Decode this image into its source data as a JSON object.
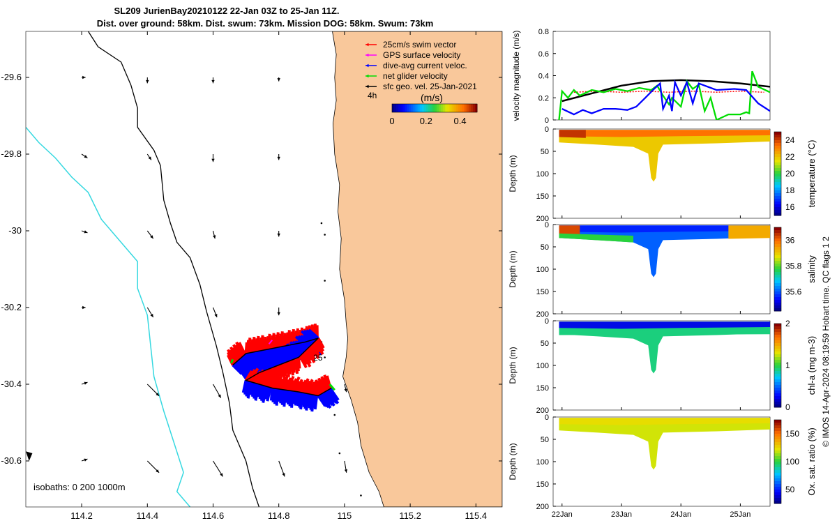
{
  "header": {
    "title_line1": "SL209 JurienBay20210122 22-Jan 03Z to 25-Jan 11Z.",
    "title_line2": "Dist. over ground: 58km. Dist. swum: 73km. Mission DOG: 58km. Swum: 73km"
  },
  "footer": {
    "credit": "© IMOS 14-Apr-2024 08:19:59 Hobart time. QC flags 1  2"
  },
  "colors": {
    "land": "#f9c89b",
    "isobath_0": "#000000",
    "isobath_1000": "#35d8e0",
    "swim": "#ff0000",
    "gps": "#ff00ff",
    "dive_avg": "#0000ff",
    "net": "#00dd00",
    "geo": "#000000"
  },
  "chart_data": [
    {
      "type": "map",
      "name": "glider-track-map",
      "xlim": [
        114.03,
        115.48
      ],
      "ylim": [
        -30.72,
        -29.48
      ],
      "xticks": [
        114.2,
        114.4,
        114.6,
        114.8,
        115,
        115.2,
        115.4
      ],
      "yticks": [
        -29.6,
        -29.8,
        -30,
        -30.2,
        -30.4,
        -30.6
      ],
      "xtick_labels": [
        "114.2",
        "114.4",
        "114.6",
        "114.8",
        "115",
        "115.2",
        "115.4"
      ],
      "ytick_labels": [
        "-29.6",
        "-29.8",
        "-30",
        "-30.2",
        "-30.4",
        "-30.6"
      ],
      "legend": [
        {
          "label": "25cm/s swim vector",
          "color": "#ff0000"
        },
        {
          "label": "GPS surface velocity",
          "color": "#ff00ff"
        },
        {
          "label": "dive-avg current veloc.",
          "color": "#0000ff"
        },
        {
          "label": "net glider velocity",
          "color": "#00dd00"
        },
        {
          "label": "sfc geo. vel. 25-Jan-2021",
          "color": "#000000"
        }
      ],
      "scale_label": "4h",
      "colorbar": {
        "title": "(m/s)",
        "ticks": [
          0,
          0.2,
          0.4
        ],
        "tick_labels": [
          "0",
          "0.2",
          "0.4"
        ],
        "range": [
          0,
          0.5
        ]
      },
      "isobath_label": "isobaths: 0   200  1000m",
      "annotations": [
        "25"
      ],
      "coastline": [
        [
          114.963,
          -29.48
        ],
        [
          114.975,
          -29.54
        ],
        [
          114.97,
          -29.6
        ],
        [
          114.975,
          -29.66
        ],
        [
          114.965,
          -29.72
        ],
        [
          114.97,
          -29.8
        ],
        [
          114.985,
          -29.88
        ],
        [
          114.98,
          -29.95
        ],
        [
          114.99,
          -30.02
        ],
        [
          114.985,
          -30.1
        ],
        [
          115.0,
          -30.18
        ],
        [
          115.005,
          -30.24
        ],
        [
          115.01,
          -30.28
        ],
        [
          115.005,
          -30.33
        ],
        [
          114.995,
          -30.38
        ],
        [
          115.02,
          -30.44
        ],
        [
          115.04,
          -30.5
        ],
        [
          115.05,
          -30.56
        ],
        [
          115.075,
          -30.63
        ],
        [
          115.105,
          -30.68
        ],
        [
          115.12,
          -30.72
        ]
      ],
      "isobath_200": [
        [
          114.22,
          -29.48
        ],
        [
          114.25,
          -29.52
        ],
        [
          114.32,
          -29.56
        ],
        [
          114.35,
          -29.62
        ],
        [
          114.37,
          -29.68
        ],
        [
          114.37,
          -29.73
        ],
        [
          114.42,
          -29.79
        ],
        [
          114.44,
          -29.83
        ],
        [
          114.45,
          -29.92
        ],
        [
          114.47,
          -29.98
        ],
        [
          114.49,
          -30.03
        ],
        [
          114.53,
          -30.07
        ],
        [
          114.56,
          -30.14
        ],
        [
          114.58,
          -30.21
        ],
        [
          114.61,
          -30.3
        ],
        [
          114.63,
          -30.37
        ],
        [
          114.65,
          -30.45
        ],
        [
          114.66,
          -30.52
        ],
        [
          114.7,
          -30.6
        ],
        [
          114.72,
          -30.67
        ],
        [
          114.74,
          -30.72
        ]
      ],
      "isobath_1000": [
        [
          114.03,
          -29.73
        ],
        [
          114.07,
          -29.77
        ],
        [
          114.12,
          -29.81
        ],
        [
          114.17,
          -29.86
        ],
        [
          114.22,
          -29.9
        ],
        [
          114.26,
          -29.97
        ],
        [
          114.32,
          -30.03
        ],
        [
          114.37,
          -30.08
        ],
        [
          114.37,
          -30.15
        ],
        [
          114.4,
          -30.22
        ],
        [
          114.41,
          -30.3
        ],
        [
          114.42,
          -30.38
        ],
        [
          114.45,
          -30.47
        ],
        [
          114.48,
          -30.55
        ],
        [
          114.51,
          -30.63
        ],
        [
          114.49,
          -30.68
        ],
        [
          114.53,
          -30.72
        ]
      ],
      "track": [
        [
          114.66,
          -30.35
        ],
        [
          114.7,
          -30.32
        ],
        [
          114.76,
          -30.31
        ],
        [
          114.82,
          -30.3
        ],
        [
          114.88,
          -30.29
        ],
        [
          114.92,
          -30.28
        ],
        [
          114.86,
          -30.33
        ],
        [
          114.8,
          -30.35
        ],
        [
          114.74,
          -30.37
        ],
        [
          114.7,
          -30.39
        ],
        [
          114.78,
          -30.41
        ],
        [
          114.86,
          -30.42
        ],
        [
          114.92,
          -30.43
        ],
        [
          114.96,
          -30.41
        ]
      ],
      "geo_vectors": {
        "lons": [
          114.2,
          114.4,
          114.6,
          114.8,
          115.0
        ],
        "lats": [
          -29.6,
          -29.8,
          -30.0,
          -30.2,
          -30.4,
          -30.6
        ],
        "u": [
          [
            0.02,
            0.0,
            0.0,
            0.0,
            null
          ],
          [
            0.03,
            0.02,
            0.0,
            0.0,
            null
          ],
          [
            0.03,
            0.03,
            0.01,
            0.0,
            null
          ],
          [
            0.02,
            0.03,
            0.02,
            0.0,
            null
          ],
          [
            0.03,
            0.06,
            0.04,
            0.0,
            0.01
          ],
          [
            0.03,
            0.06,
            0.05,
            0.03,
            0.01
          ]
        ],
        "v": [
          [
            0.0,
            -0.03,
            -0.03,
            -0.02,
            null
          ],
          [
            -0.02,
            -0.03,
            -0.04,
            -0.03,
            null
          ],
          [
            -0.01,
            -0.04,
            -0.04,
            -0.03,
            null
          ],
          [
            0.0,
            -0.05,
            -0.05,
            -0.04,
            null
          ],
          [
            0.01,
            -0.06,
            -0.07,
            -0.05,
            -0.04
          ],
          [
            0.01,
            -0.06,
            -0.08,
            -0.08,
            -0.06
          ]
        ]
      }
    },
    {
      "type": "line",
      "name": "velocity-magnitude",
      "ylabel": "velocity magnitude (m/s)",
      "ylim": [
        0,
        0.8
      ],
      "yticks": [
        0,
        0.2,
        0.4,
        0.6,
        0.8
      ],
      "ytick_labels": [
        "0",
        "0.2",
        "0.4",
        "0.6",
        "0.8"
      ],
      "xlim": [
        21.85,
        25.5
      ],
      "series": [
        {
          "name": "sfc geo. vel.",
          "color": "#000000",
          "x": [
            22.0,
            22.5,
            23.0,
            23.5,
            24.0,
            24.5,
            25.0,
            25.5
          ],
          "values": [
            0.17,
            0.24,
            0.31,
            0.35,
            0.36,
            0.35,
            0.33,
            0.3
          ]
        },
        {
          "name": "swim vector",
          "color": "#ff0000",
          "x": [
            22.2,
            22.6,
            23.0,
            23.4,
            23.8,
            24.2,
            24.6,
            25.0,
            25.4
          ],
          "values": [
            0.25,
            0.26,
            0.25,
            0.26,
            0.25,
            0.26,
            0.25,
            0.26,
            0.25
          ]
        },
        {
          "name": "net glider velocity",
          "color": "#00dd00",
          "x": [
            21.95,
            22.0,
            22.1,
            22.2,
            22.3,
            22.5,
            22.7,
            22.9,
            23.1,
            23.3,
            23.5,
            23.6,
            23.7,
            23.8,
            23.85,
            24.0,
            24.1,
            24.2,
            24.3,
            24.4,
            24.5,
            24.6,
            24.8,
            25.0,
            25.1,
            25.15,
            25.2,
            25.3,
            25.5
          ],
          "values": [
            0.0,
            0.26,
            0.2,
            0.27,
            0.22,
            0.27,
            0.25,
            0.28,
            0.26,
            0.29,
            0.27,
            0.31,
            0.22,
            0.14,
            0.2,
            0.12,
            0.35,
            0.28,
            0.32,
            0.08,
            0.2,
            0.0,
            0.05,
            0.05,
            0.07,
            0.06,
            0.44,
            0.3,
            0.25
          ]
        },
        {
          "name": "dive-avg current veloc.",
          "color": "#0000ff",
          "x": [
            22.0,
            22.2,
            22.35,
            22.5,
            22.7,
            22.9,
            23.1,
            23.25,
            23.4,
            23.55,
            23.65,
            23.7,
            23.8,
            23.85,
            23.9,
            24.0,
            24.1,
            24.2,
            24.3,
            24.6,
            24.9,
            25.1,
            25.3,
            25.5
          ],
          "values": [
            0.1,
            0.05,
            0.09,
            0.06,
            0.1,
            0.1,
            0.09,
            0.12,
            0.2,
            0.28,
            0.33,
            0.1,
            0.22,
            0.08,
            0.34,
            0.22,
            0.34,
            0.15,
            0.33,
            0.27,
            0.28,
            0.27,
            0.15,
            0.08
          ]
        }
      ]
    },
    {
      "type": "section",
      "name": "temperature-section",
      "ylabel": "Depth (m)",
      "ylim": [
        0,
        200
      ],
      "yticks": [
        0,
        50,
        100,
        150,
        200
      ],
      "ytick_labels": [
        "0",
        "50",
        "100",
        "150",
        "200"
      ],
      "colorbar_label": "temperature (°C)",
      "colorbar_range": [
        15,
        25
      ],
      "colorbar_ticks": [
        16,
        18,
        20,
        22,
        24
      ],
      "colorbar_tick_labels": [
        "16",
        "18",
        "20",
        "22",
        "24"
      ],
      "surface_value": 23.5,
      "deep_value": 22.0
    },
    {
      "type": "section",
      "name": "salinity-section",
      "ylabel": "Depth (m)",
      "ylim": [
        0,
        200
      ],
      "yticks": [
        0,
        50,
        100,
        150,
        200
      ],
      "ytick_labels": [
        "0",
        "50",
        "100",
        "150",
        "200"
      ],
      "colorbar_label": "salinity",
      "colorbar_range": [
        35.45,
        36.1
      ],
      "colorbar_ticks": [
        35.6,
        35.8,
        36
      ],
      "colorbar_tick_labels": [
        "35.6",
        "35.8",
        "36"
      ],
      "surface_value": 35.55,
      "deep_value": 35.6
    },
    {
      "type": "section",
      "name": "chla-section",
      "ylabel": "Depth (m)",
      "ylim": [
        0,
        200
      ],
      "yticks": [
        0,
        50,
        100,
        150,
        200
      ],
      "ytick_labels": [
        "0",
        "50",
        "100",
        "150",
        "200"
      ],
      "colorbar_label": "chl-a (mg m-3)",
      "colorbar_range": [
        0,
        2
      ],
      "colorbar_ticks": [
        0,
        1,
        2
      ],
      "colorbar_tick_labels": [
        "0",
        "1",
        "2"
      ],
      "surface_value": 0.2,
      "deep_value": 0.9
    },
    {
      "type": "section",
      "name": "oxygen-section",
      "ylabel": "Depth (m)",
      "ylim": [
        0,
        200
      ],
      "yticks": [
        0,
        50,
        100,
        150,
        200
      ],
      "ytick_labels": [
        "0",
        "50",
        "100",
        "150",
        "200"
      ],
      "colorbar_label": "Ox. sat. ratio (%)",
      "colorbar_range": [
        25,
        175
      ],
      "colorbar_ticks": [
        50,
        100,
        150
      ],
      "colorbar_tick_labels": [
        "50",
        "100",
        "150"
      ],
      "surface_value": 125,
      "deep_value": 120
    }
  ],
  "time_axis": {
    "xlim": [
      21.85,
      25.5
    ],
    "ticks": [
      22,
      23,
      24,
      25
    ],
    "tick_labels": [
      "22Jan",
      "23Jan",
      "24Jan",
      "25Jan"
    ]
  }
}
